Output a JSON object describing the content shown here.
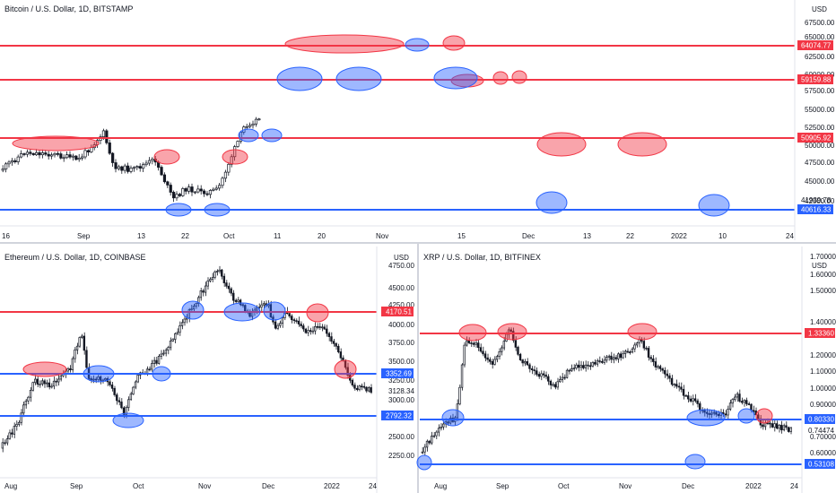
{
  "charts": [
    {
      "id": "btc",
      "title": "Bitcoin / U.S. Dollar, 1D, BITSTAMP",
      "currency": "USD",
      "price_ticks": [
        "67500.00",
        "65000.00",
        "62500.00",
        "60000.00",
        "57500.00",
        "55000.00",
        "52500.00",
        "50000.00",
        "47500.00",
        "45000.00",
        "42500.00"
      ],
      "time_labels": [
        "16",
        "Sep",
        "13",
        "22",
        "Oct",
        "11",
        "20",
        "Nov",
        "15",
        "Dec",
        "13",
        "22",
        "2022",
        "10",
        "24"
      ],
      "levels": [
        {
          "value": "64074.77",
          "color": "#f23645"
        },
        {
          "value": "59159.88",
          "color": "#f23645"
        },
        {
          "value": "50905.92",
          "color": "#f23645"
        },
        {
          "value": "40616.33",
          "color": "#2962ff"
        }
      ],
      "current_price": "41939.78"
    },
    {
      "id": "eth",
      "title": "Ethereum / U.S. Dollar, 1D, COINBASE",
      "currency": "USD",
      "price_ticks": [
        "4750.00",
        "4500.00",
        "4250.00",
        "4000.00",
        "3750.00",
        "3500.00",
        "3250.00",
        "3000.00",
        "2500.00",
        "2250.00"
      ],
      "time_labels": [
        "Aug",
        "Sep",
        "Oct",
        "Nov",
        "Dec",
        "2022",
        "24"
      ],
      "levels": [
        {
          "value": "4170.51",
          "color": "#f23645"
        },
        {
          "value": "3352.69",
          "color": "#2962ff"
        },
        {
          "value": "2792.32",
          "color": "#2962ff"
        }
      ],
      "current_price": "3128.34"
    },
    {
      "id": "xrp",
      "title": "XRP / U.S. Dollar, 1D, BITFINEX",
      "currency": "USD",
      "price_ticks": [
        "1.70000",
        "1.60000",
        "1.50000",
        "1.40000",
        "1.20000",
        "1.10000",
        "1.00000",
        "0.90000",
        "0.70000",
        "0.60000"
      ],
      "time_labels": [
        "Aug",
        "Sep",
        "Oct",
        "Nov",
        "Dec",
        "2022",
        "24"
      ],
      "levels": [
        {
          "value": "1.33360",
          "color": "#f23645"
        },
        {
          "value": "0.80330",
          "color": "#2962ff"
        },
        {
          "value": "0.53108",
          "color": "#2962ff"
        }
      ],
      "current_price": "0.74474"
    }
  ],
  "colors": {
    "red": "#f23645",
    "blue": "#2962ff",
    "candle": "#131722"
  }
}
